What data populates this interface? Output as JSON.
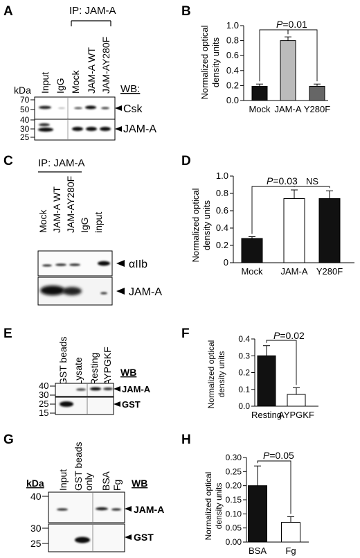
{
  "panels": {
    "A": {
      "letter": "A",
      "ip_label": "IP: JAM-A",
      "lanes": [
        "Input",
        "IgG",
        "Mock",
        "JAM-A WT",
        "JAM-AY280F"
      ],
      "kda_label": "kDa",
      "markers": [
        "70",
        "50",
        "40",
        "30",
        "25"
      ],
      "wb_label": "WB:",
      "bands": [
        "Csk",
        "JAM-A"
      ]
    },
    "B": {
      "letter": "B",
      "ylabel": "Normalized optical density units",
      "pvalue": "P=0.01"
    },
    "C": {
      "letter": "C",
      "ip_label": "IP: JAM-A",
      "lanes": [
        "Mock",
        "JAM-A WT",
        "JAM-AY280F",
        "IgG",
        "input"
      ],
      "bands": [
        "αIIb",
        "JAM-A"
      ]
    },
    "D": {
      "letter": "D",
      "ylabel": "Normalized optical density units",
      "pvalue": "P=0.03",
      "ns": "NS"
    },
    "E": {
      "letter": "E",
      "lanes": [
        "GST beads",
        "Lysate",
        "Resting",
        "AYPGKF"
      ],
      "markers": [
        "40",
        "30",
        "25",
        "15"
      ],
      "wb_label": "WB",
      "bands": [
        "JAM-A",
        "GST"
      ]
    },
    "F": {
      "letter": "F",
      "ylabel": "Normalized optical density units",
      "pvalue": "P=0.02"
    },
    "G": {
      "letter": "G",
      "lanes": [
        "Input",
        "GST beads only",
        "BSA",
        "Fg"
      ],
      "kda_label": "kDa",
      "markers": [
        "40",
        "30",
        "25"
      ],
      "wb_label": "WB",
      "bands": [
        "JAM-A",
        "GST"
      ]
    },
    "H": {
      "letter": "H",
      "ylabel": "Normalized optical density units",
      "pvalue": "P=0.05"
    }
  },
  "chart_data": [
    {
      "panel": "B",
      "type": "bar",
      "categories": [
        "Mock",
        "JAM-A",
        "Y280F"
      ],
      "values": [
        0.19,
        0.8,
        0.19
      ],
      "errors": [
        0.03,
        0.05,
        0.03
      ],
      "colors": [
        "#111111",
        "#bbbbbb",
        "#666666"
      ],
      "ylabel": "Normalized optical density units",
      "ylim": [
        0,
        1.0
      ],
      "yticks": [
        "0.0",
        "0.2",
        "0.4",
        "0.6",
        "0.8",
        "1.0"
      ]
    },
    {
      "panel": "D",
      "type": "bar",
      "categories": [
        "Mock",
        "JAM-A",
        "Y280F"
      ],
      "values": [
        0.28,
        0.74,
        0.74
      ],
      "errors": [
        0.02,
        0.1,
        0.09
      ],
      "colors": [
        "#111111",
        "#ffffff",
        "#111111"
      ],
      "ylabel": "Normalized optical density units",
      "ylim": [
        0,
        1.0
      ],
      "yticks": [
        "0",
        "0.2",
        "0.4",
        "0.6",
        "0.8",
        "1.0"
      ]
    },
    {
      "panel": "F",
      "type": "bar",
      "categories": [
        "Resting",
        "AYPGKF"
      ],
      "values": [
        0.3,
        0.07
      ],
      "errors": [
        0.06,
        0.04
      ],
      "colors": [
        "#111111",
        "#ffffff"
      ],
      "ylabel": "Normalized optical density units",
      "ylim": [
        0,
        0.4
      ],
      "yticks": [
        "0.0",
        "0.1",
        "0.2",
        "0.3",
        "0.4"
      ]
    },
    {
      "panel": "H",
      "type": "bar",
      "categories": [
        "BSA",
        "Fg"
      ],
      "values": [
        0.2,
        0.07
      ],
      "errors": [
        0.07,
        0.02
      ],
      "colors": [
        "#111111",
        "#ffffff"
      ],
      "ylabel": "Normalized optical density units",
      "ylim": [
        0,
        0.3
      ],
      "yticks": [
        "0.00",
        "0.05",
        "0.10",
        "0.15",
        "0.20",
        "0.25",
        "0.30"
      ]
    }
  ]
}
